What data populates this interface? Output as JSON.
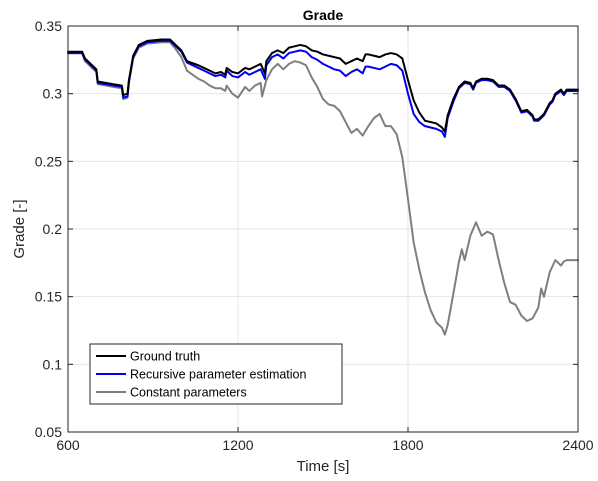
{
  "chart_data": {
    "type": "line",
    "title": "Grade",
    "xlabel": "Time [s]",
    "ylabel": "Grade [-]",
    "xlim": [
      600,
      2400
    ],
    "ylim": [
      0.05,
      0.35
    ],
    "xticks": [
      600,
      1200,
      1800,
      2400
    ],
    "yticks": [
      0.05,
      0.1,
      0.15,
      0.2,
      0.25,
      0.3,
      0.35
    ],
    "ytick_labels": [
      "0.05",
      "0.1",
      "0.15",
      "0.2",
      "0.25",
      "0.3",
      "0.35"
    ],
    "grid": true,
    "legend_position": "bottom-left",
    "series": [
      {
        "name": "Ground truth",
        "color": "#000000",
        "x": [
          600,
          650,
          660,
          700,
          705,
          760,
          790,
          795,
          810,
          815,
          830,
          850,
          880,
          930,
          960,
          980,
          1000,
          1020,
          1060,
          1080,
          1100,
          1120,
          1140,
          1155,
          1160,
          1180,
          1200,
          1225,
          1240,
          1260,
          1280,
          1295,
          1300,
          1320,
          1340,
          1360,
          1380,
          1400,
          1420,
          1440,
          1460,
          1480,
          1500,
          1520,
          1540,
          1560,
          1580,
          1600,
          1620,
          1640,
          1650,
          1660,
          1680,
          1700,
          1720,
          1740,
          1760,
          1780,
          1800,
          1820,
          1840,
          1860,
          1880,
          1900,
          1920,
          1930,
          1940,
          1960,
          1980,
          2000,
          2020,
          2030,
          2040,
          2060,
          2080,
          2100,
          2120,
          2140,
          2160,
          2180,
          2200,
          2220,
          2240,
          2245,
          2260,
          2280,
          2300,
          2310,
          2320,
          2340,
          2350,
          2360,
          2380,
          2400
        ],
        "y": [
          0.331,
          0.331,
          0.326,
          0.318,
          0.309,
          0.307,
          0.306,
          0.299,
          0.3,
          0.31,
          0.328,
          0.336,
          0.339,
          0.34,
          0.34,
          0.336,
          0.332,
          0.324,
          0.321,
          0.319,
          0.317,
          0.315,
          0.316,
          0.314,
          0.319,
          0.316,
          0.315,
          0.319,
          0.318,
          0.32,
          0.322,
          0.315,
          0.324,
          0.33,
          0.332,
          0.33,
          0.334,
          0.335,
          0.336,
          0.335,
          0.332,
          0.331,
          0.329,
          0.328,
          0.327,
          0.326,
          0.322,
          0.324,
          0.326,
          0.324,
          0.329,
          0.329,
          0.328,
          0.327,
          0.329,
          0.33,
          0.329,
          0.326,
          0.31,
          0.295,
          0.286,
          0.28,
          0.279,
          0.278,
          0.275,
          0.272,
          0.284,
          0.296,
          0.305,
          0.309,
          0.308,
          0.304,
          0.309,
          0.311,
          0.311,
          0.31,
          0.306,
          0.306,
          0.303,
          0.296,
          0.287,
          0.288,
          0.284,
          0.281,
          0.281,
          0.285,
          0.293,
          0.295,
          0.3,
          0.303,
          0.3,
          0.303,
          0.303,
          0.303
        ]
      },
      {
        "name": "Recursive parameter estimation",
        "color": "#0000ee",
        "x": [
          600,
          650,
          660,
          700,
          705,
          760,
          790,
          795,
          810,
          815,
          830,
          850,
          880,
          930,
          960,
          980,
          1000,
          1020,
          1060,
          1080,
          1100,
          1120,
          1140,
          1155,
          1160,
          1180,
          1200,
          1225,
          1240,
          1260,
          1280,
          1295,
          1300,
          1320,
          1340,
          1360,
          1380,
          1400,
          1420,
          1440,
          1460,
          1480,
          1500,
          1520,
          1540,
          1560,
          1580,
          1600,
          1620,
          1640,
          1650,
          1660,
          1680,
          1700,
          1720,
          1740,
          1760,
          1780,
          1800,
          1820,
          1840,
          1860,
          1880,
          1900,
          1920,
          1930,
          1940,
          1960,
          1980,
          2000,
          2020,
          2030,
          2040,
          2060,
          2080,
          2100,
          2120,
          2140,
          2160,
          2180,
          2200,
          2220,
          2240,
          2245,
          2260,
          2280,
          2300,
          2310,
          2320,
          2340,
          2350,
          2360,
          2380,
          2400
        ],
        "y": [
          0.33,
          0.33,
          0.325,
          0.317,
          0.308,
          0.306,
          0.305,
          0.297,
          0.298,
          0.309,
          0.327,
          0.335,
          0.338,
          0.339,
          0.339,
          0.335,
          0.331,
          0.323,
          0.319,
          0.317,
          0.315,
          0.313,
          0.314,
          0.312,
          0.317,
          0.313,
          0.312,
          0.316,
          0.314,
          0.316,
          0.318,
          0.311,
          0.321,
          0.327,
          0.329,
          0.326,
          0.33,
          0.331,
          0.332,
          0.331,
          0.327,
          0.325,
          0.322,
          0.32,
          0.318,
          0.317,
          0.313,
          0.316,
          0.318,
          0.315,
          0.32,
          0.32,
          0.319,
          0.318,
          0.32,
          0.322,
          0.321,
          0.317,
          0.3,
          0.285,
          0.279,
          0.276,
          0.275,
          0.274,
          0.272,
          0.268,
          0.282,
          0.294,
          0.304,
          0.308,
          0.307,
          0.303,
          0.308,
          0.31,
          0.31,
          0.309,
          0.305,
          0.305,
          0.302,
          0.295,
          0.286,
          0.287,
          0.283,
          0.28,
          0.28,
          0.284,
          0.292,
          0.294,
          0.299,
          0.302,
          0.299,
          0.302,
          0.302,
          0.302
        ]
      },
      {
        "name": "Constant parameters",
        "color": "#7f7f7f",
        "x": [
          600,
          650,
          660,
          700,
          705,
          760,
          790,
          795,
          810,
          815,
          830,
          850,
          880,
          930,
          960,
          980,
          1000,
          1020,
          1060,
          1080,
          1100,
          1120,
          1140,
          1155,
          1160,
          1180,
          1200,
          1225,
          1240,
          1260,
          1280,
          1285,
          1300,
          1320,
          1340,
          1360,
          1380,
          1400,
          1420,
          1440,
          1460,
          1480,
          1500,
          1520,
          1540,
          1560,
          1580,
          1600,
          1620,
          1640,
          1660,
          1680,
          1700,
          1720,
          1740,
          1760,
          1780,
          1800,
          1820,
          1840,
          1860,
          1880,
          1900,
          1920,
          1930,
          1940,
          1960,
          1980,
          1990,
          2000,
          2020,
          2040,
          2060,
          2080,
          2100,
          2120,
          2140,
          2160,
          2180,
          2200,
          2220,
          2240,
          2260,
          2270,
          2280,
          2300,
          2320,
          2340,
          2350,
          2360,
          2380,
          2400
        ],
        "y": [
          0.33,
          0.33,
          0.324,
          0.316,
          0.307,
          0.305,
          0.304,
          0.296,
          0.297,
          0.308,
          0.326,
          0.334,
          0.337,
          0.338,
          0.338,
          0.333,
          0.327,
          0.317,
          0.311,
          0.309,
          0.306,
          0.304,
          0.304,
          0.302,
          0.306,
          0.3,
          0.297,
          0.305,
          0.302,
          0.306,
          0.308,
          0.298,
          0.31,
          0.318,
          0.322,
          0.318,
          0.322,
          0.324,
          0.323,
          0.321,
          0.312,
          0.305,
          0.296,
          0.292,
          0.291,
          0.287,
          0.279,
          0.271,
          0.274,
          0.269,
          0.276,
          0.282,
          0.285,
          0.276,
          0.276,
          0.27,
          0.253,
          0.222,
          0.19,
          0.17,
          0.153,
          0.14,
          0.131,
          0.127,
          0.122,
          0.129,
          0.152,
          0.176,
          0.185,
          0.177,
          0.195,
          0.205,
          0.195,
          0.198,
          0.196,
          0.177,
          0.16,
          0.146,
          0.144,
          0.136,
          0.132,
          0.134,
          0.142,
          0.156,
          0.15,
          0.168,
          0.177,
          0.173,
          0.176,
          0.177,
          0.177,
          0.177
        ]
      }
    ]
  }
}
